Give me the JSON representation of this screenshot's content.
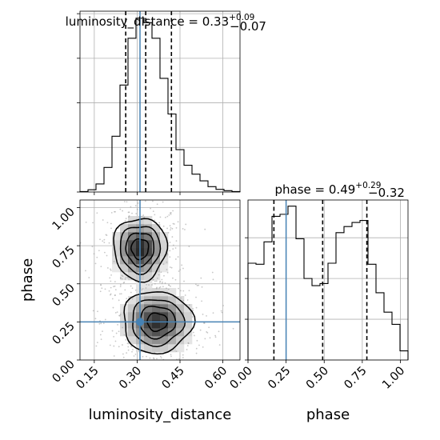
{
  "chart_data": {
    "type": "corner",
    "parameters": [
      "luminosity_distance",
      "phase"
    ],
    "axis_labels": {
      "x_left": "luminosity_distance",
      "x_right": "phase",
      "y_bottom": "phase"
    },
    "titles": {
      "luminosity_distance": {
        "name": "luminosity_distance",
        "median": "0.33",
        "plus": "+0.09",
        "minus": "−0.07"
      },
      "phase": {
        "name": "phase",
        "median": "0.49",
        "plus": "+0.29",
        "minus": "−0.32"
      }
    },
    "truth": {
      "luminosity_distance": 0.31,
      "phase": 0.25
    },
    "ranges": {
      "luminosity_distance": [
        0.1,
        0.66
      ],
      "phase": [
        0.0,
        1.05
      ]
    },
    "ticks": {
      "luminosity_distance": [
        "0.15",
        "0.30",
        "0.45",
        "0.60"
      ],
      "phase": [
        "0.00",
        "0.25",
        "0.50",
        "0.75",
        "1.00"
      ]
    },
    "quantiles": {
      "luminosity_distance": [
        0.26,
        0.33,
        0.42
      ],
      "phase": [
        0.17,
        0.49,
        0.78
      ]
    },
    "histograms": {
      "luminosity_distance": {
        "bin_edges": [
          0.1,
          0.128,
          0.156,
          0.184,
          0.212,
          0.24,
          0.268,
          0.296,
          0.324,
          0.352,
          0.38,
          0.408,
          0.436,
          0.464,
          0.492,
          0.52,
          0.548,
          0.576,
          0.604,
          0.632,
          0.66
        ],
        "counts": [
          1,
          5,
          18,
          55,
          125,
          240,
          345,
          390,
          380,
          345,
          255,
          175,
          95,
          60,
          40,
          25,
          12,
          6,
          3,
          1
        ]
      },
      "phase": {
        "bin_edges": [
          0.0,
          0.0525,
          0.105,
          0.1575,
          0.21,
          0.2625,
          0.315,
          0.3675,
          0.42,
          0.4725,
          0.525,
          0.5775,
          0.63,
          0.6825,
          0.735,
          0.7875,
          0.84,
          0.8925,
          0.945,
          0.9975,
          1.05
        ],
        "counts": [
          475,
          470,
          580,
          705,
          715,
          755,
          595,
          400,
          365,
          375,
          475,
          625,
          655,
          675,
          685,
          470,
          330,
          235,
          175,
          45
        ]
      }
    },
    "joint_2d": {
      "x": "luminosity_distance",
      "y": "phase",
      "modes": [
        {
          "x": 0.31,
          "y": 0.73,
          "sx": 0.045,
          "sy": 0.1,
          "weight": 1.0
        },
        {
          "x": 0.37,
          "y": 0.25,
          "sx": 0.06,
          "sy": 0.1,
          "weight": 0.95
        }
      ],
      "contour_levels": 4
    }
  }
}
